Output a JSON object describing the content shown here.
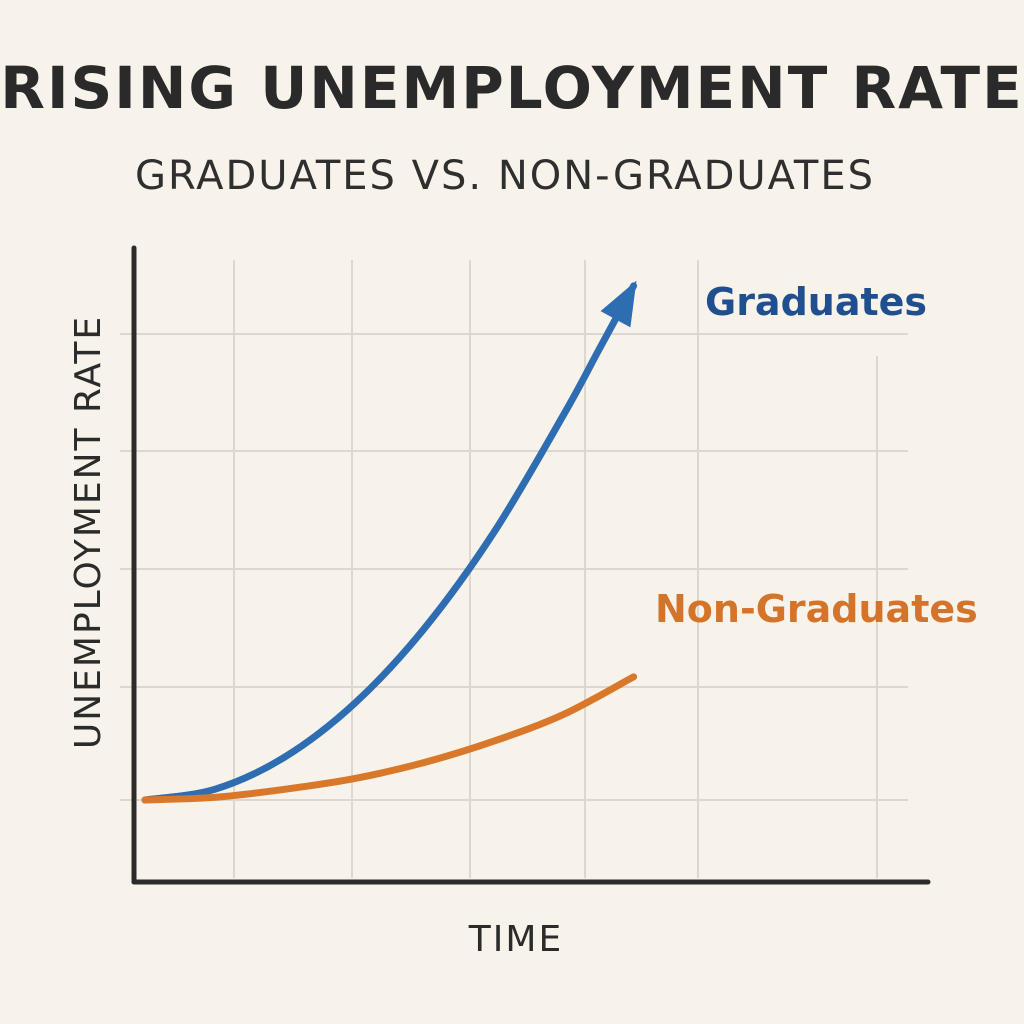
{
  "chart_data": {
    "type": "line",
    "title": "RISING UNEMPLOYMENT RATE",
    "subtitle": "GRADUATES VS. NON-GRADUATES",
    "xlabel": "TIME",
    "ylabel": "UNEMPLOYMENT RATE",
    "grid": true,
    "xlim": [
      0,
      100
    ],
    "ylim": [
      0,
      100
    ],
    "series": [
      {
        "name": "Graduates",
        "color": "#2f6db3",
        "label_color": "#1f4f8f",
        "arrow": true,
        "x": [
          0,
          10,
          20,
          30,
          40,
          50,
          60,
          65,
          70
        ],
        "y": [
          10,
          12,
          18,
          28,
          42,
          60,
          82,
          94,
          106
        ]
      },
      {
        "name": "Non-Graduates",
        "color": "#d9782b",
        "label_color": "#d4742a",
        "arrow": false,
        "x": [
          0,
          10,
          20,
          30,
          40,
          50,
          60,
          70
        ],
        "y": [
          10,
          10.5,
          12,
          14,
          17,
          21,
          26,
          33
        ]
      }
    ]
  }
}
